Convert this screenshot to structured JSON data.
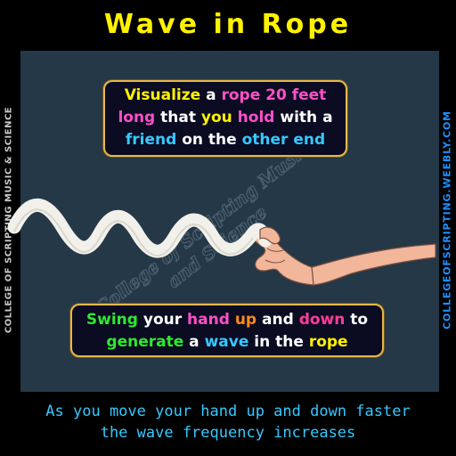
{
  "title": "Wave in Rope",
  "side_left": "COLLEGE OF SCRIPTING MUSIC & SCIENCE",
  "side_right": "COLLEGEOFSCRIPTING.WEEBLY.COM",
  "watermark": {
    "line1": "College of Scripting Music",
    "line2": "and Science"
  },
  "bubble_top": {
    "line1": [
      {
        "text": "Visualize",
        "color": "yellow"
      },
      {
        "text": " a ",
        "color": "white"
      },
      {
        "text": "rope",
        "color": "pink"
      },
      {
        "text": " 20 feet",
        "color": "pink"
      }
    ],
    "line2": [
      {
        "text": "long",
        "color": "pink"
      },
      {
        "text": " that ",
        "color": "white"
      },
      {
        "text": "you",
        "color": "yellow"
      },
      {
        "text": " hold",
        "color": "pink"
      },
      {
        "text": " with a",
        "color": "white"
      }
    ],
    "line3": [
      {
        "text": "friend",
        "color": "cyan"
      },
      {
        "text": " on the ",
        "color": "white"
      },
      {
        "text": "other end",
        "color": "cyan"
      }
    ]
  },
  "bubble_bottom": {
    "line1": [
      {
        "text": "Swing",
        "color": "green"
      },
      {
        "text": " your ",
        "color": "white"
      },
      {
        "text": "hand",
        "color": "pink"
      },
      {
        "text": " up",
        "color": "orange"
      },
      {
        "text": " and ",
        "color": "white"
      },
      {
        "text": "down",
        "color": "magenta"
      },
      {
        "text": " to",
        "color": "white"
      }
    ],
    "line2": [
      {
        "text": "generate",
        "color": "green"
      },
      {
        "text": " a ",
        "color": "white"
      },
      {
        "text": "wave",
        "color": "cyan"
      },
      {
        "text": " in the ",
        "color": "white"
      },
      {
        "text": "rope",
        "color": "yellow"
      }
    ]
  },
  "footer": {
    "line1": "As you move your hand up and down faster",
    "line2": "the wave frequency increases"
  },
  "colors": {
    "title": "#fff200",
    "panel": "#253847",
    "bubble_border": "#e6b84a",
    "footer_text": "#36c8ff",
    "rope": "#f2f0ea",
    "skin": "#f2b79a"
  }
}
